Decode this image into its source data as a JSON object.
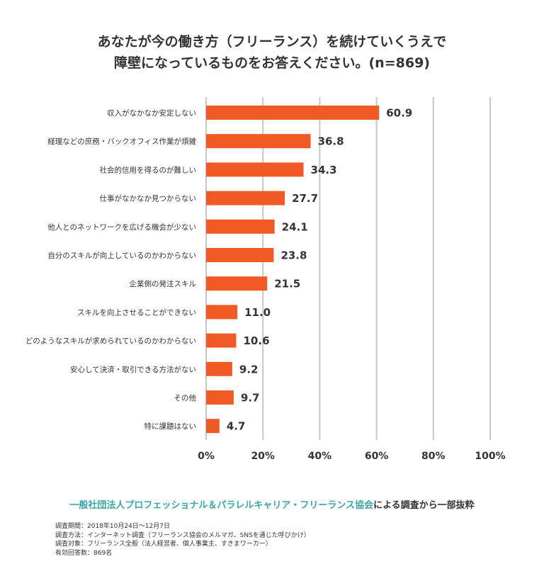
{
  "title_lines": [
    "あなたが今の働き方（フリーランス）を続けていくうえで",
    "障壁になっているものをお答えください。(n=869)"
  ],
  "chart_data": {
    "type": "bar",
    "orientation": "horizontal",
    "categories": [
      "収入がなかなか安定しない",
      "経理などの庶務・バックオフィス作業が煩雑",
      "社会的信用を得るのが難しい",
      "仕事がなかなか見つからない",
      "他人とのネットワークを広げる機会が少ない",
      "自分のスキルが向上しているのかわからない",
      "企業側の発注スキル",
      "スキルを向上させることができない",
      "どのようなスキルが求められているのかわからない",
      "安心して決済・取引できる方法がない",
      "その他",
      "特に課題はない"
    ],
    "values": [
      60.9,
      36.8,
      34.3,
      27.7,
      24.1,
      23.8,
      21.5,
      11.0,
      10.6,
      9.2,
      9.7,
      4.7
    ],
    "value_labels": [
      "60.9",
      "36.8",
      "34.3",
      "27.7",
      "24.1",
      "23.8",
      "21.5",
      "11.0",
      "10.6",
      "9.2",
      "9.7",
      "4.7"
    ],
    "xlim": [
      0,
      100
    ],
    "x_ticks": [
      0,
      20,
      40,
      60,
      80,
      100
    ],
    "x_tick_labels": [
      "0%",
      "20%",
      "40%",
      "60%",
      "80%",
      "100%"
    ],
    "grid": "vertical",
    "bar_color": "#f15a24",
    "grid_color": "#c8c8c8"
  },
  "source": {
    "highlight": "一般社団法人プロフェッショナル＆パラレルキャリア・フリーランス協会",
    "rest": "による調査から一部抜粋",
    "highlight_color": "#3aa5a8"
  },
  "notes": [
    "調査期間：2018年10月24日〜12月7日",
    "調査方法：インターネット調査（フリーランス協会のメルマガ、SNSを通じた呼びかけ）",
    "調査対象：フリーランス全般（法人経営者、個人事業主、すきまワーカー）",
    "有効回答数：869名"
  ]
}
